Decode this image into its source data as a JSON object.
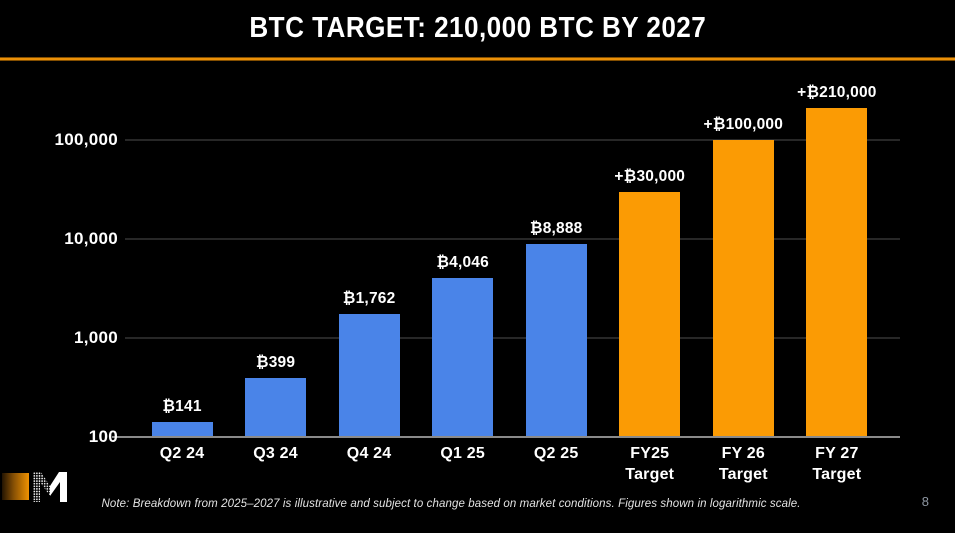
{
  "page": {
    "title": "BTC TARGET: 210,000 BTC BY 2027",
    "note": "Note: Breakdown from 2025–2027 is illustrative and subject to change based on market conditions. Figures shown in logarithmic scale.",
    "page_number": "8"
  },
  "colors": {
    "background": "#000000",
    "bar_blue": "#4a84e8",
    "bar_orange": "#fb9b04",
    "gridline": "#272727",
    "axis_line": "#8a8a8a",
    "title_text": "#ffffff",
    "note_text": "#e3e3e3",
    "page_number_text": "#8e97a2",
    "divider_orange": "#ef8f00"
  },
  "chart_data": {
    "type": "bar",
    "scale": "log10",
    "title": "BTC TARGET: 210,000 BTC BY 2027",
    "xlabel": "",
    "ylabel": "",
    "ylim": [
      100,
      316228
    ],
    "grid": true,
    "categories": [
      "Q2 24",
      "Q3 24",
      "Q4 24",
      "Q1 25",
      "Q2 25",
      "FY25 Target",
      "FY 26 Target",
      "FY 27 Target"
    ],
    "category_lines": [
      [
        "Q2 24"
      ],
      [
        "Q3 24"
      ],
      [
        "Q4 24"
      ],
      [
        "Q1 25"
      ],
      [
        "Q2 25"
      ],
      [
        "FY25",
        "Target"
      ],
      [
        "FY 26",
        "Target"
      ],
      [
        "FY 27",
        "Target"
      ]
    ],
    "values": [
      141,
      399,
      1762,
      4046,
      8888,
      30000,
      100000,
      210000
    ],
    "value_labels": [
      "₿141",
      "₿399",
      "₿1,762",
      "₿4,046",
      "₿8,888",
      "+₿30,000",
      "+₿100,000",
      "+₿210,000"
    ],
    "bar_color_keys": [
      "bar_blue",
      "bar_blue",
      "bar_blue",
      "bar_blue",
      "bar_blue",
      "bar_orange",
      "bar_orange",
      "bar_orange"
    ],
    "y_ticks": [
      100,
      1000,
      10000,
      100000
    ],
    "y_tick_labels": [
      "100",
      "1,000",
      "10,000",
      "100,000"
    ]
  }
}
